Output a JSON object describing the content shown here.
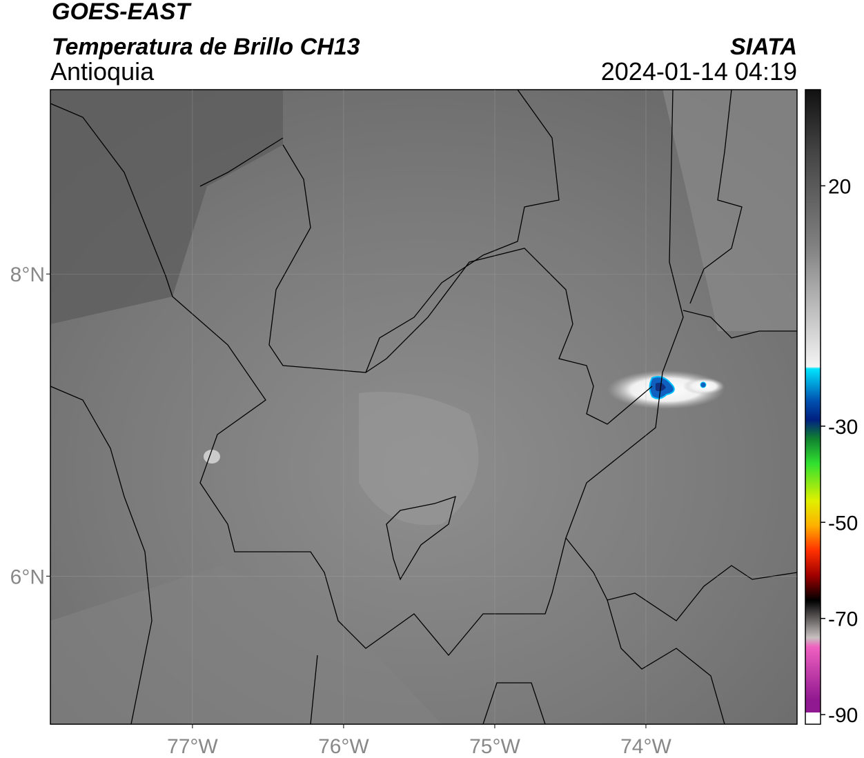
{
  "header": {
    "title": "GOES-EAST",
    "subtitle": "Temperatura de Brillo CH13",
    "region": "Antioquia",
    "source": "SIATA",
    "datetime": "2024-01-14 04:19"
  },
  "map": {
    "xlim": [
      -77.94,
      -73.0
    ],
    "ylim": [
      5.02,
      9.22
    ],
    "xticks": [
      {
        "value": -77,
        "label": "77°W"
      },
      {
        "value": -76,
        "label": "76°W"
      },
      {
        "value": -75,
        "label": "75°W"
      },
      {
        "value": -74,
        "label": "74°W"
      }
    ],
    "yticks": [
      {
        "value": 8,
        "label": "8°N"
      },
      {
        "value": 6,
        "label": "6°N"
      }
    ]
  },
  "colorbar": {
    "lim": [
      -92,
      40
    ],
    "ticks": [
      20,
      -30,
      -50,
      -70,
      -90
    ]
  }
}
